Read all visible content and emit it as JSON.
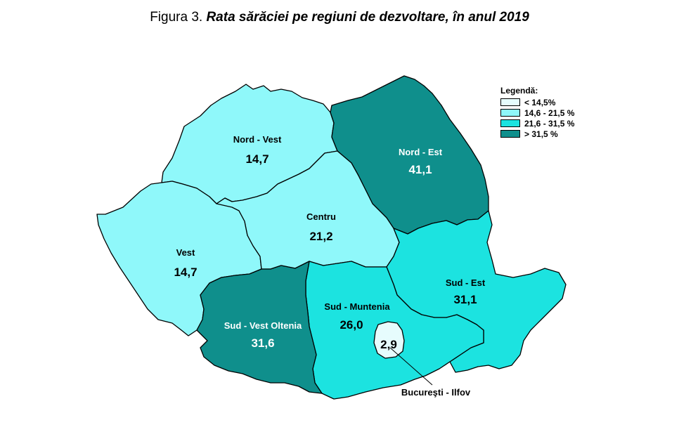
{
  "title": {
    "prefix": "Figura 3.",
    "caption": "Rata sărăciei pe regiuni de dezvoltare, în anul 2019"
  },
  "legend": {
    "title": "Legendă:",
    "items": [
      {
        "label": "< 14,5%",
        "color": "#e6fcfd"
      },
      {
        "label": "14,6 - 21,5 %",
        "color": "#8ff8fa"
      },
      {
        "label": "21,6 - 31,5 %",
        "color": "#1ce3e0"
      },
      {
        "label": "> 31,5 %",
        "color": "#0f8f8c"
      }
    ]
  },
  "regions": {
    "nord_vest": {
      "name": "Nord - Vest",
      "value": "14,7",
      "color": "#8ff8fa"
    },
    "nord_est": {
      "name": "Nord - Est",
      "value": "41,1",
      "color": "#0f8f8c"
    },
    "vest": {
      "name": "Vest",
      "value": "14,7",
      "color": "#8ff8fa"
    },
    "centru": {
      "name": "Centru",
      "value": "21,2",
      "color": "#8ff8fa"
    },
    "sud_est": {
      "name": "Sud - Est",
      "value": "31,1",
      "color": "#1ce3e0"
    },
    "sud_muntenia": {
      "name": "Sud - Muntenia",
      "value": "26,0",
      "color": "#1ce3e0"
    },
    "sud_vest_oltenia": {
      "name": "Sud - Vest Oltenia",
      "value": "31,6",
      "color": "#0f8f8c"
    },
    "bucuresti_ilfov": {
      "name": "Bucureşti - Ilfov",
      "value": "2,9",
      "color": "#e6fcfd"
    }
  }
}
